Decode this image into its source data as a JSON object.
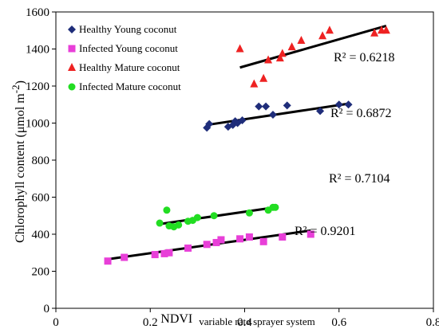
{
  "chart_data": {
    "type": "scatter",
    "xlabel": "NDVI",
    "xlabel_subscript": "variable rate sprayer system",
    "ylabel": "Chlorophyll content (μmol m",
    "ylabel_superscript": "-2",
    "ylabel_close": ")",
    "xlim": [
      0,
      0.8
    ],
    "ylim": [
      0,
      1600
    ],
    "x_ticks": [
      "0",
      "0.2",
      "0.4",
      "0.6",
      "0.8"
    ],
    "y_ticks": [
      "0",
      "200",
      "400",
      "600",
      "800",
      "1000",
      "1200",
      "1400",
      "1600"
    ],
    "x_tick_values": [
      0,
      0.2,
      0.4,
      0.6,
      0.8
    ],
    "y_tick_values": [
      0,
      200,
      400,
      600,
      800,
      1000,
      1200,
      1400,
      1600
    ],
    "grid": false,
    "legend_position": "top-left",
    "series": [
      {
        "name": "Healthy Young coconut",
        "marker": "diamond",
        "color": "#1f2d7a",
        "points": [
          [
            0.32,
            975
          ],
          [
            0.325,
            995
          ],
          [
            0.365,
            980
          ],
          [
            0.375,
            990
          ],
          [
            0.38,
            1010
          ],
          [
            0.385,
            1000
          ],
          [
            0.395,
            1015
          ],
          [
            0.43,
            1090
          ],
          [
            0.445,
            1090
          ],
          [
            0.46,
            1045
          ],
          [
            0.49,
            1095
          ],
          [
            0.56,
            1065
          ],
          [
            0.6,
            1100
          ],
          [
            0.62,
            1100
          ]
        ],
        "trend": [
          [
            0.32,
            990
          ],
          [
            0.62,
            1105
          ]
        ],
        "r2_label": "R² = 0.6872"
      },
      {
        "name": "Infected Young coconut",
        "marker": "square",
        "color": "#e83fd8",
        "points": [
          [
            0.11,
            255
          ],
          [
            0.145,
            275
          ],
          [
            0.21,
            290
          ],
          [
            0.23,
            295
          ],
          [
            0.24,
            300
          ],
          [
            0.28,
            325
          ],
          [
            0.32,
            345
          ],
          [
            0.34,
            355
          ],
          [
            0.35,
            370
          ],
          [
            0.39,
            375
          ],
          [
            0.41,
            385
          ],
          [
            0.44,
            360
          ],
          [
            0.48,
            385
          ],
          [
            0.54,
            400
          ]
        ],
        "trend": [
          [
            0.11,
            265
          ],
          [
            0.54,
            420
          ]
        ],
        "r2_label": "R² = 0.9201"
      },
      {
        "name": "Healthy Mature coconut",
        "marker": "triangle",
        "color": "#ee2222",
        "points": [
          [
            0.39,
            1400
          ],
          [
            0.42,
            1210
          ],
          [
            0.44,
            1240
          ],
          [
            0.45,
            1340
          ],
          [
            0.475,
            1350
          ],
          [
            0.48,
            1375
          ],
          [
            0.5,
            1410
          ],
          [
            0.52,
            1445
          ],
          [
            0.565,
            1470
          ],
          [
            0.58,
            1500
          ],
          [
            0.675,
            1485
          ],
          [
            0.69,
            1500
          ],
          [
            0.7,
            1500
          ]
        ],
        "trend": [
          [
            0.39,
            1300
          ],
          [
            0.7,
            1525
          ]
        ],
        "r2_label": "R² = 0.6218"
      },
      {
        "name": "Infected Mature coconut",
        "marker": "circle",
        "color": "#22dd22",
        "points": [
          [
            0.22,
            460
          ],
          [
            0.235,
            530
          ],
          [
            0.24,
            445
          ],
          [
            0.25,
            440
          ],
          [
            0.26,
            450
          ],
          [
            0.28,
            470
          ],
          [
            0.29,
            475
          ],
          [
            0.3,
            490
          ],
          [
            0.335,
            500
          ],
          [
            0.41,
            515
          ],
          [
            0.45,
            530
          ],
          [
            0.46,
            545
          ],
          [
            0.465,
            545
          ]
        ],
        "trend": [
          [
            0.22,
            455
          ],
          [
            0.465,
            545
          ]
        ],
        "r2_label": "R² = 0.7104"
      }
    ]
  }
}
